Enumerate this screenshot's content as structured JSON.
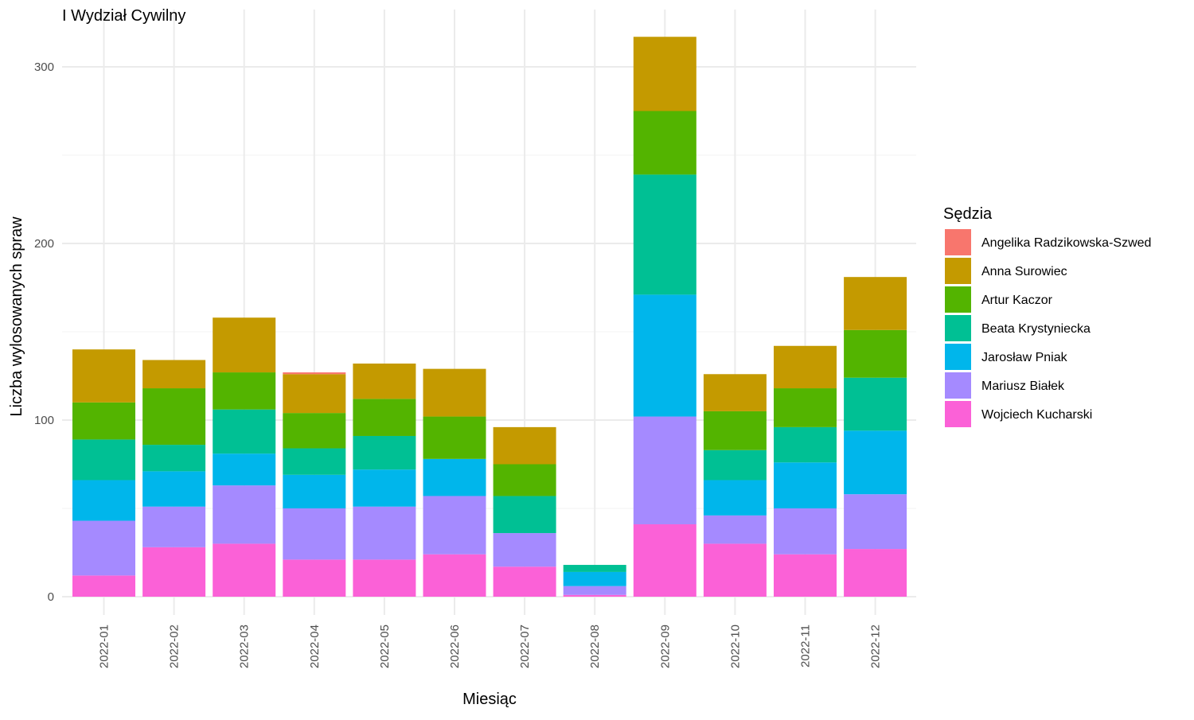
{
  "chart_data": {
    "type": "bar",
    "stacked": true,
    "title": "I Wydział Cywilny",
    "xlabel": "Miesiąc",
    "ylabel": "Liczba wylosowanych spraw",
    "ylim": [
      0,
      320
    ],
    "yticks": [
      0,
      100,
      200,
      300
    ],
    "grid": true,
    "legend_title": "Sędzia",
    "legend_position": "right",
    "categories": [
      "2022-01",
      "2022-02",
      "2022-03",
      "2022-04",
      "2022-05",
      "2022-06",
      "2022-07",
      "2022-08",
      "2022-09",
      "2022-10",
      "2022-11",
      "2022-12"
    ],
    "series": [
      {
        "name": "Angelika Radzikowska-Szwed",
        "color": "#F8766D",
        "values": [
          0,
          0,
          0,
          1,
          0,
          0,
          0,
          0,
          0,
          0,
          0,
          0
        ]
      },
      {
        "name": "Anna Surowiec",
        "color": "#C49A00",
        "values": [
          30,
          16,
          31,
          22,
          20,
          27,
          21,
          0,
          42,
          21,
          24,
          30
        ]
      },
      {
        "name": "Artur Kaczor",
        "color": "#53B400",
        "values": [
          21,
          32,
          21,
          20,
          21,
          24,
          18,
          0,
          36,
          22,
          22,
          27
        ]
      },
      {
        "name": "Beata Krystyniecka",
        "color": "#00C094",
        "values": [
          23,
          15,
          25,
          15,
          19,
          0,
          21,
          4,
          68,
          17,
          20,
          30
        ]
      },
      {
        "name": "Jarosław Pniak",
        "color": "#00B6EB",
        "values": [
          23,
          20,
          18,
          19,
          21,
          21,
          0,
          8,
          69,
          20,
          26,
          36
        ]
      },
      {
        "name": "Mariusz Białek",
        "color": "#A58AFF",
        "values": [
          31,
          23,
          33,
          29,
          30,
          33,
          19,
          5,
          61,
          16,
          26,
          31
        ]
      },
      {
        "name": "Wojciech Kucharski",
        "color": "#FB61D7",
        "values": [
          12,
          28,
          30,
          21,
          21,
          24,
          17,
          1,
          41,
          30,
          24,
          27
        ]
      }
    ]
  }
}
